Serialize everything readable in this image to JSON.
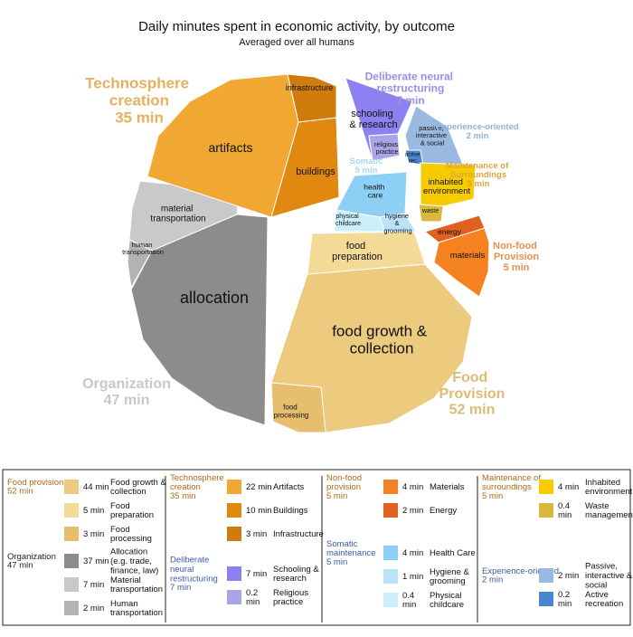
{
  "chart_data": {
    "type": "treemap",
    "title": "Daily minutes spent in economic activity, by outcome",
    "subtitle": "Averaged over all humans",
    "groups": [
      {
        "name": "Food Provision",
        "legend_name": "Food provision",
        "value": 52,
        "value_label": "52 min",
        "color": "#dcbb74",
        "legend_title_color": "#b06a1a",
        "items": [
          {
            "name": "Food growth & collection",
            "short": "food growth & collection",
            "value": 44,
            "value_label": "44 min",
            "color": "#ecca7e"
          },
          {
            "name": "Food preparation",
            "short": "food preparation",
            "value": 5,
            "value_label": "5 min",
            "color": "#f4da97"
          },
          {
            "name": "Food processing",
            "short": "food processing",
            "value": 3,
            "value_label": "3 min",
            "color": "#e6be6e"
          }
        ]
      },
      {
        "name": "Organization",
        "legend_name": "Organization",
        "value": 47,
        "value_label": "47 min",
        "color": "#c8c8c8",
        "legend_title_color": "#222222",
        "items": [
          {
            "name": "Allocation (e.g. trade, finance, law)",
            "short": "allocation",
            "value": 37,
            "value_label": "37 min",
            "color": "#8c8c8c"
          },
          {
            "name": "Material transportation",
            "short": "material transportation",
            "value": 7,
            "value_label": "7 min",
            "color": "#c9c9c9"
          },
          {
            "name": "Human transportation",
            "short": "human transportation",
            "value": 2,
            "value_label": "2 min",
            "color": "#b3b3b3"
          }
        ]
      },
      {
        "name": "Technosphere creation",
        "legend_name": "Technosphere creation",
        "value": 35,
        "value_label": "35 min",
        "color": "#e6b05e",
        "legend_title_color": "#b06a1a",
        "items": [
          {
            "name": "Artifacts",
            "short": "artifacts",
            "value": 22,
            "value_label": "22 min",
            "color": "#f0a832"
          },
          {
            "name": "Buildings",
            "short": "buildings",
            "value": 10,
            "value_label": "10 min",
            "color": "#e08810"
          },
          {
            "name": "Infrastructure",
            "short": "infrastructure",
            "value": 3,
            "value_label": "3 min",
            "color": "#d07c0c"
          }
        ]
      },
      {
        "name": "Deliberate neural restructuring",
        "legend_name": "Deliberate neural restructuring",
        "value": 7,
        "value_label": "7 min",
        "color": "#9a8fe6",
        "legend_title_color": "#3a5aa8",
        "items": [
          {
            "name": "Schooling & research",
            "short": "schooling & research",
            "value": 7,
            "value_label": "7 min",
            "color": "#8d80f0"
          },
          {
            "name": "Religious practice",
            "short": "religious practice",
            "value": 0.2,
            "value_label": "0.2 min",
            "color": "#aaa4e8"
          }
        ]
      },
      {
        "name": "Experience-oriented",
        "legend_name": "Experience-oriented",
        "value": 2,
        "value_label": "2 min",
        "color": "#8fb0d8",
        "legend_title_color": "#3a5aa8",
        "items": [
          {
            "name": "Passive, interactive & social",
            "short": "passive, interactive & social",
            "value": 2,
            "value_label": "2 min",
            "color": "#9ab9e0"
          },
          {
            "name": "Active recreation",
            "short": "active rec.",
            "value": 0.2,
            "value_label": "0.2 min",
            "color": "#4a86d0"
          }
        ]
      },
      {
        "name": "Somatic",
        "legend_name": "Somatic maintenance",
        "value": 5,
        "value_label": "5 min",
        "color": "#a8d8f0",
        "legend_title_color": "#3a5aa8",
        "items": [
          {
            "name": "Health Care",
            "short": "health care",
            "value": 4,
            "value_label": "4 min",
            "color": "#8ed0f5"
          },
          {
            "name": "Hygiene & grooming",
            "short": "hygiene & grooming",
            "value": 1,
            "value_label": "1 min",
            "color": "#b9e4f8"
          },
          {
            "name": "Physical childcare",
            "short": "physical childcare",
            "value": 0.4,
            "value_label": "0.4 min",
            "color": "#cbeefb"
          }
        ]
      },
      {
        "name": "Maintenance of Surroundings",
        "legend_name": "Maintenance of surroundings",
        "value": 5,
        "value_label": "5 min",
        "color": "#e0a43e",
        "legend_title_color": "#b06a1a",
        "items": [
          {
            "name": "Inhabited environment",
            "short": "inhabited environment",
            "value": 4,
            "value_label": "4 min",
            "color": "#f6cc00"
          },
          {
            "name": "Waste management",
            "short": "waste",
            "value": 0.4,
            "value_label": "0.4 min",
            "color": "#dab840"
          }
        ]
      },
      {
        "name": "Non-food Provision",
        "legend_name": "Non-food provision",
        "value": 5,
        "value_label": "5 min",
        "color": "#e8904e",
        "legend_title_color": "#b06a1a",
        "items": [
          {
            "name": "Materials",
            "short": "materials",
            "value": 4,
            "value_label": "4 min",
            "color": "#f58220"
          },
          {
            "name": "Energy",
            "short": "energy",
            "value": 2,
            "value_label": "2 min",
            "color": "#e06020"
          }
        ]
      }
    ]
  }
}
